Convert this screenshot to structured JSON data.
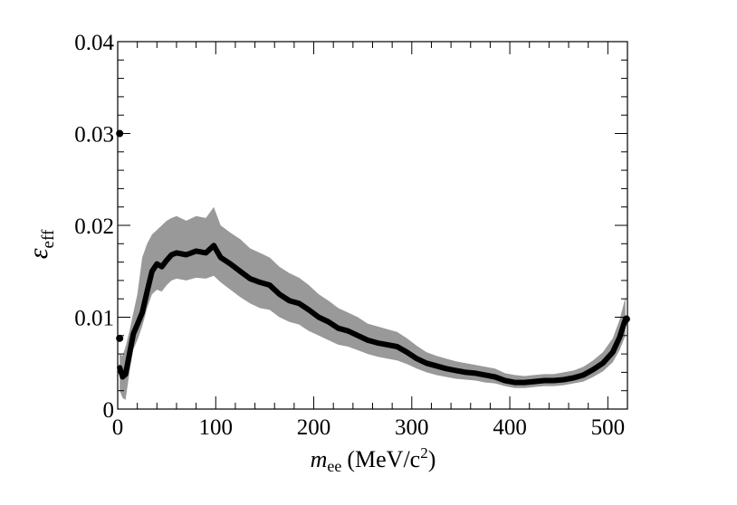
{
  "chart_data": {
    "type": "line",
    "title": "",
    "xlabel": {
      "main": "m",
      "sub": "ee",
      "units_prefix": "(MeV/c",
      "units_sup": "2",
      "units_suffix": ")"
    },
    "ylabel": {
      "main": "ε",
      "sub": "eff"
    },
    "xlim": [
      0,
      520
    ],
    "ylim": [
      0,
      0.04
    ],
    "x_ticks": [
      0,
      100,
      200,
      300,
      400,
      500
    ],
    "x_tick_labels": [
      "0",
      "100",
      "200",
      "300",
      "400",
      "500"
    ],
    "y_ticks": [
      0,
      0.01,
      0.02,
      0.03,
      0.04
    ],
    "y_tick_labels": [
      "0",
      "0.01",
      "0.02",
      "0.03",
      "0.04"
    ],
    "grid": false,
    "series": [
      {
        "name": "efficiency",
        "color": "#000000",
        "x": [
          2,
          5,
          8,
          12,
          16,
          20,
          25,
          30,
          35,
          40,
          45,
          50,
          55,
          60,
          70,
          80,
          90,
          98,
          105,
          115,
          125,
          135,
          145,
          155,
          165,
          175,
          185,
          195,
          205,
          215,
          225,
          235,
          245,
          255,
          265,
          275,
          285,
          295,
          305,
          315,
          325,
          335,
          345,
          355,
          365,
          375,
          385,
          395,
          405,
          415,
          425,
          435,
          445,
          455,
          465,
          475,
          485,
          495,
          505,
          512,
          518
        ],
        "y": [
          0.0045,
          0.0035,
          0.0038,
          0.006,
          0.0082,
          0.0092,
          0.0105,
          0.0128,
          0.015,
          0.0158,
          0.0155,
          0.0162,
          0.0168,
          0.017,
          0.0168,
          0.0172,
          0.017,
          0.0178,
          0.0165,
          0.0158,
          0.015,
          0.0142,
          0.0138,
          0.0135,
          0.0125,
          0.0118,
          0.0115,
          0.0108,
          0.01,
          0.0095,
          0.0088,
          0.0085,
          0.008,
          0.0075,
          0.0072,
          0.007,
          0.0068,
          0.0062,
          0.0055,
          0.005,
          0.0047,
          0.0044,
          0.0042,
          0.004,
          0.0039,
          0.0037,
          0.0035,
          0.0031,
          0.0029,
          0.0029,
          0.003,
          0.0031,
          0.0031,
          0.0032,
          0.0034,
          0.0037,
          0.0043,
          0.005,
          0.0062,
          0.0078,
          0.0098
        ],
        "band_lower": [
          0.002,
          0.0012,
          0.001,
          0.004,
          0.0065,
          0.0075,
          0.009,
          0.011,
          0.0125,
          0.013,
          0.0128,
          0.0135,
          0.014,
          0.0142,
          0.014,
          0.0143,
          0.0142,
          0.0145,
          0.0138,
          0.013,
          0.0122,
          0.0115,
          0.011,
          0.0108,
          0.01,
          0.0095,
          0.0092,
          0.0085,
          0.008,
          0.0075,
          0.007,
          0.0068,
          0.0064,
          0.006,
          0.0057,
          0.0055,
          0.0053,
          0.0049,
          0.0044,
          0.004,
          0.0037,
          0.0035,
          0.0033,
          0.0032,
          0.0031,
          0.0029,
          0.0028,
          0.0025,
          0.0023,
          0.0023,
          0.0024,
          0.0025,
          0.0025,
          0.0026,
          0.0028,
          0.003,
          0.0035,
          0.0041,
          0.0051,
          0.0064,
          0.008
        ],
        "band_upper": [
          0.006,
          0.0058,
          0.0068,
          0.0085,
          0.0105,
          0.0125,
          0.0165,
          0.018,
          0.019,
          0.0195,
          0.02,
          0.0205,
          0.0208,
          0.021,
          0.0205,
          0.021,
          0.0208,
          0.022,
          0.02,
          0.0192,
          0.0185,
          0.0175,
          0.017,
          0.0165,
          0.0155,
          0.0148,
          0.0143,
          0.0135,
          0.0125,
          0.0118,
          0.011,
          0.0105,
          0.01,
          0.0093,
          0.009,
          0.0087,
          0.0084,
          0.0077,
          0.0069,
          0.0062,
          0.0058,
          0.0055,
          0.0052,
          0.005,
          0.0048,
          0.0046,
          0.0044,
          0.0039,
          0.0037,
          0.0036,
          0.0037,
          0.0038,
          0.0038,
          0.004,
          0.0042,
          0.0046,
          0.0053,
          0.0062,
          0.0077,
          0.0097,
          0.0122
        ]
      }
    ],
    "points": [
      {
        "x": 2,
        "y": 0.03
      },
      {
        "x": 2,
        "y": 0.0077
      },
      {
        "x": 519,
        "y": 0.0098
      }
    ],
    "band_color": "#999999"
  }
}
